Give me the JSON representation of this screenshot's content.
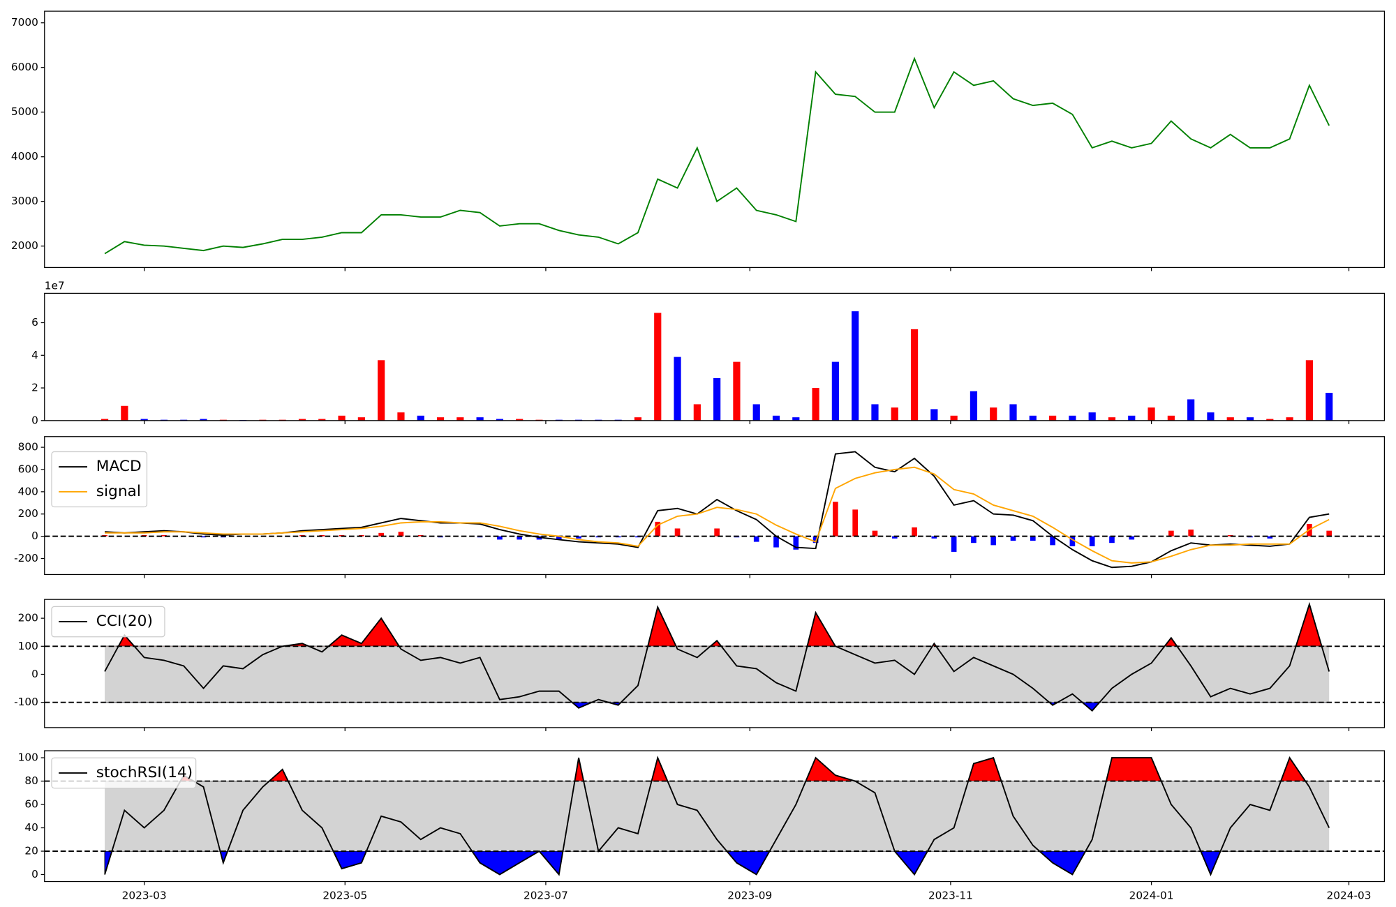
{
  "chart_data": [
    {
      "type": "line",
      "x": [
        19405,
        19411,
        19417,
        19423,
        19429,
        19435,
        19441,
        19447,
        19453,
        19459,
        19465,
        19471,
        19477,
        19483,
        19489,
        19495,
        19501,
        19507,
        19513,
        19519,
        19525,
        19531,
        19537,
        19543,
        19549,
        19555,
        19561,
        19567,
        19573,
        19579,
        19585,
        19591,
        19597,
        19603,
        19609,
        19615,
        19621,
        19627,
        19633,
        19639,
        19645,
        19651,
        19657,
        19663,
        19669,
        19675,
        19681,
        19687,
        19693,
        19699,
        19705,
        19711,
        19717,
        19723,
        19729,
        19735,
        19741,
        19747,
        19753,
        19759,
        19765,
        19771,
        19777
      ],
      "xlim": [
        19386.7,
        19793.8
      ],
      "series": [
        {
          "color": "green",
          "values": [
            1830,
            2100,
            2020,
            2000,
            1950,
            1900,
            2000,
            1970,
            2050,
            2150,
            2150,
            2200,
            2300,
            2300,
            2700,
            2700,
            2650,
            2650,
            2800,
            2750,
            2450,
            2500,
            2500,
            2350,
            2250,
            2200,
            2050,
            2300,
            3500,
            3300,
            4200,
            3000,
            3300,
            2800,
            2700,
            2550,
            5900,
            5400,
            5350,
            5000,
            5000,
            6200,
            5100,
            5900,
            5600,
            5700,
            5300,
            5150,
            5200,
            4950,
            4200,
            4350,
            4200,
            4300,
            4800,
            4400,
            4200,
            4500,
            4200,
            4200,
            4400,
            5600,
            4700
          ]
        }
      ],
      "ylim": [
        1520,
        7260
      ],
      "yticks": [
        2000,
        3000,
        4000,
        5000,
        6000,
        7000
      ]
    },
    {
      "type": "bar",
      "values": [
        1000000,
        9000000,
        1000000,
        500000,
        500000,
        1000000,
        500000,
        300000,
        500000,
        500000,
        1000000,
        1000000,
        3000000,
        2000000,
        37000000,
        5000000,
        3000000,
        2000000,
        2000000,
        2000000,
        1000000,
        1000000,
        500000,
        500000,
        500000,
        500000,
        500000,
        2000000,
        66000000,
        39000000,
        10000000,
        26000000,
        36000000,
        10000000,
        3000000,
        2000000,
        20000000,
        36000000,
        67000000,
        10000000,
        8000000,
        56000000,
        7000000,
        3000000,
        18000000,
        8000000,
        10000000,
        3000000,
        3000000,
        3000000,
        5000000,
        2000000,
        3000000,
        8000000,
        3000000,
        13000000,
        5000000,
        2000000,
        2000000,
        1000000,
        2000000,
        37000000,
        17000000
      ],
      "up_color": "red",
      "down_color": "blue",
      "ylim": [
        0,
        78000000
      ],
      "yticks": [
        0,
        {
          "value": 20000000,
          "label": "2"
        },
        {
          "value": 40000000,
          "label": "4"
        },
        {
          "value": 60000000,
          "label": "6"
        }
      ],
      "offset_text": "1e7"
    },
    {
      "type": "macd",
      "series": [
        {
          "name": "MACD",
          "color": "black",
          "values": [
            40,
            30,
            40,
            50,
            40,
            20,
            10,
            20,
            20,
            30,
            50,
            60,
            70,
            80,
            120,
            160,
            140,
            120,
            120,
            110,
            60,
            20,
            -10,
            -30,
            -50,
            -60,
            -70,
            -100,
            230,
            250,
            200,
            330,
            230,
            150,
            0,
            -100,
            -110,
            740,
            760,
            620,
            580,
            700,
            540,
            280,
            320,
            200,
            190,
            140,
            0,
            -120,
            -220,
            -280,
            -270,
            -230,
            -130,
            -60,
            -80,
            -70,
            -80,
            -90,
            -70,
            170,
            200
          ]
        },
        {
          "name": "signal",
          "color": "orange",
          "values": [
            30,
            30,
            30,
            40,
            40,
            30,
            20,
            20,
            20,
            30,
            40,
            50,
            60,
            70,
            90,
            120,
            130,
            130,
            120,
            120,
            90,
            50,
            20,
            0,
            -30,
            -50,
            -60,
            -90,
            100,
            180,
            200,
            260,
            240,
            200,
            100,
            20,
            -50,
            430,
            520,
            570,
            600,
            620,
            560,
            420,
            380,
            280,
            230,
            180,
            80,
            -30,
            -130,
            -220,
            -240,
            -230,
            -180,
            -120,
            -80,
            -80,
            -70,
            -70,
            -70,
            60,
            150
          ]
        }
      ],
      "histogram": {
        "pos_color": "red",
        "neg_color": "blue",
        "values": [
          10,
          0,
          10,
          10,
          0,
          -10,
          -10,
          0,
          0,
          0,
          10,
          10,
          10,
          10,
          30,
          40,
          10,
          -10,
          0,
          -10,
          -30,
          -30,
          -30,
          -30,
          -20,
          -10,
          -10,
          -10,
          130,
          70,
          0,
          70,
          -10,
          -50,
          -100,
          -120,
          -60,
          310,
          240,
          50,
          -20,
          80,
          -20,
          -140,
          -60,
          -80,
          -40,
          -40,
          -80,
          -90,
          -90,
          -60,
          -30,
          0,
          50,
          60,
          0,
          10,
          -10,
          -20,
          0,
          110,
          50
        ]
      },
      "hline": 0,
      "ylim": [
        -344,
        896
      ],
      "yticks": [
        -200,
        0,
        200,
        400,
        600,
        800
      ]
    },
    {
      "type": "oscillator",
      "series": [
        {
          "name": "CCI(20)",
          "color": "black",
          "values": [
            10,
            140,
            60,
            50,
            30,
            -50,
            30,
            20,
            70,
            100,
            110,
            80,
            140,
            110,
            200,
            90,
            50,
            60,
            40,
            60,
            -90,
            -80,
            -60,
            -60,
            -120,
            -90,
            -110,
            -40,
            240,
            90,
            60,
            120,
            30,
            20,
            -30,
            -60,
            220,
            100,
            70,
            40,
            50,
            0,
            110,
            10,
            60,
            30,
            0,
            -50,
            -110,
            -70,
            -130,
            -50,
            0,
            40,
            130,
            30,
            -80,
            -50,
            -70,
            -50,
            30,
            250,
            10
          ]
        }
      ],
      "bands": [
        -100,
        100
      ],
      "band_color": "lightgray",
      "upper_fill": "red",
      "lower_fill": "blue",
      "ylim": [
        -190,
        267
      ],
      "yticks": [
        -100,
        0,
        100,
        200
      ]
    },
    {
      "type": "oscillator",
      "series": [
        {
          "name": "stochRSI(14)",
          "color": "black",
          "values": [
            0,
            55,
            40,
            55,
            85,
            75,
            10,
            55,
            75,
            90,
            55,
            40,
            5,
            10,
            50,
            45,
            30,
            40,
            35,
            10,
            0,
            10,
            20,
            0,
            100,
            20,
            40,
            35,
            100,
            60,
            55,
            30,
            10,
            0,
            30,
            60,
            100,
            85,
            80,
            70,
            20,
            0,
            30,
            40,
            95,
            100,
            50,
            25,
            10,
            0,
            30,
            100,
            100,
            100,
            60,
            40,
            0,
            40,
            60,
            55,
            100,
            75,
            40
          ]
        }
      ],
      "bands": [
        20,
        80
      ],
      "band_color": "lightgray",
      "upper_fill": "red",
      "lower_fill": "blue",
      "ylim": [
        -6,
        106
      ],
      "yticks": [
        0,
        20,
        40,
        60,
        80,
        100
      ],
      "xticks": [
        {
          "value": 19417,
          "label": "2023-03"
        },
        {
          "value": 19478,
          "label": "2023-05"
        },
        {
          "value": 19539,
          "label": "2023-07"
        },
        {
          "value": 19601,
          "label": "2023-09"
        },
        {
          "value": 19662,
          "label": "2023-11"
        },
        {
          "value": 19723,
          "label": "2024-01"
        },
        {
          "value": 19783,
          "label": "2024-03"
        }
      ]
    }
  ]
}
